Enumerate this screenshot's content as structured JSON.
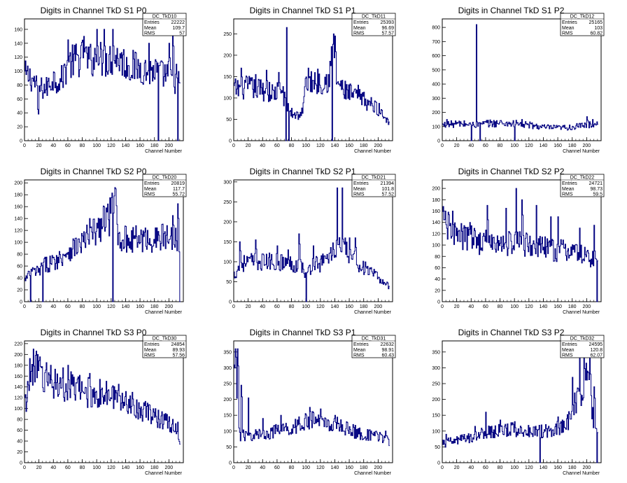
{
  "chart_data": [
    {
      "type": "line",
      "title": "Digits in Channel TkD S1 P0",
      "xlabel": "Channel Number",
      "ylabel": "",
      "xlim": [
        0,
        220
      ],
      "ylim": [
        0,
        175
      ],
      "xticks": [
        0,
        20,
        40,
        60,
        80,
        100,
        120,
        140,
        160,
        180,
        200
      ],
      "yticks": [
        0,
        20,
        40,
        60,
        80,
        100,
        120,
        140,
        160
      ],
      "color": "#000080",
      "stats": {
        "name": "DC_TkD10",
        "entries": "22222",
        "mean": "109.7",
        "rms": "57"
      },
      "anchors": [
        [
          0,
          95
        ],
        [
          10,
          90
        ],
        [
          20,
          75
        ],
        [
          30,
          75
        ],
        [
          40,
          90
        ],
        [
          50,
          85
        ],
        [
          60,
          110
        ],
        [
          70,
          115
        ],
        [
          80,
          120
        ],
        [
          90,
          115
        ],
        [
          100,
          120
        ],
        [
          110,
          115
        ],
        [
          120,
          118
        ],
        [
          130,
          120
        ],
        [
          140,
          110
        ],
        [
          150,
          105
        ],
        [
          160,
          105
        ],
        [
          170,
          100
        ],
        [
          180,
          100
        ],
        [
          190,
          95
        ],
        [
          200,
          95
        ],
        [
          210,
          85
        ],
        [
          215,
          85
        ]
      ],
      "spikes": [
        [
          18,
          45
        ],
        [
          60,
          145
        ],
        [
          82,
          150
        ],
        [
          100,
          160
        ],
        [
          110,
          160
        ],
        [
          122,
          160
        ],
        [
          150,
          130
        ],
        [
          172,
          140
        ],
        [
          200,
          140
        ],
        [
          205,
          160
        ],
        [
          210,
          110
        ]
      ],
      "dips": [
        [
          185,
          0
        ],
        [
          212,
          0
        ]
      ]
    },
    {
      "type": "line",
      "title": "Digits in Channel TkD S1 P1",
      "xlabel": "Channel Number",
      "ylabel": "",
      "xlim": [
        0,
        220
      ],
      "ylim": [
        0,
        285
      ],
      "xticks": [
        0,
        20,
        40,
        60,
        80,
        100,
        120,
        140,
        160,
        180,
        200
      ],
      "yticks": [
        0,
        50,
        100,
        150,
        200,
        250
      ],
      "color": "#000080",
      "stats": {
        "name": "DC_TkD11",
        "entries": "25393",
        "mean": "96.69",
        "rms": "57.57"
      },
      "anchors": [
        [
          0,
          120
        ],
        [
          20,
          125
        ],
        [
          40,
          120
        ],
        [
          55,
          110
        ],
        [
          68,
          120
        ],
        [
          72,
          80
        ],
        [
          80,
          65
        ],
        [
          90,
          60
        ],
        [
          96,
          70
        ],
        [
          100,
          140
        ],
        [
          120,
          140
        ],
        [
          132,
          145
        ],
        [
          138,
          220
        ],
        [
          142,
          145
        ],
        [
          150,
          120
        ],
        [
          160,
          110
        ],
        [
          180,
          95
        ],
        [
          200,
          75
        ],
        [
          215,
          45
        ]
      ],
      "spikes": [
        [
          10,
          170
        ],
        [
          30,
          155
        ],
        [
          45,
          165
        ],
        [
          62,
          160
        ],
        [
          73,
          265
        ],
        [
          138,
          250
        ],
        [
          140,
          245
        ],
        [
          172,
          130
        ]
      ],
      "dips": [
        [
          72,
          0
        ],
        [
          76,
          0
        ],
        [
          136,
          0
        ]
      ]
    },
    {
      "type": "line",
      "title": "Digits in Channel TkD S1 P2",
      "xlabel": "Channel Number",
      "ylabel": "",
      "xlim": [
        0,
        220
      ],
      "ylim": [
        0,
        860
      ],
      "xticks": [
        0,
        20,
        40,
        60,
        80,
        100,
        120,
        140,
        160,
        180,
        200
      ],
      "yticks": [
        0,
        100,
        200,
        300,
        400,
        500,
        600,
        700,
        800
      ],
      "color": "#000080",
      "stats": {
        "name": "DC_TkD12",
        "entries": "25165",
        "mean": "103",
        "rms": "60.82"
      },
      "anchors": [
        [
          0,
          110
        ],
        [
          20,
          120
        ],
        [
          40,
          115
        ],
        [
          44,
          120
        ],
        [
          48,
          110
        ],
        [
          60,
          120
        ],
        [
          80,
          125
        ],
        [
          100,
          120
        ],
        [
          120,
          110
        ],
        [
          140,
          95
        ],
        [
          160,
          90
        ],
        [
          180,
          95
        ],
        [
          200,
          110
        ],
        [
          212,
          120
        ]
      ],
      "spikes": [
        [
          47,
          820
        ],
        [
          6,
          150
        ],
        [
          100,
          160
        ],
        [
          110,
          150
        ],
        [
          200,
          170
        ],
        [
          208,
          150
        ]
      ],
      "dips": [
        [
          40,
          0
        ],
        [
          52,
          0
        ],
        [
          100,
          0
        ]
      ]
    },
    {
      "type": "line",
      "title": "Digits in Channel TkD S2 P0",
      "xlabel": "Channel Number",
      "ylabel": "",
      "xlim": [
        0,
        220
      ],
      "ylim": [
        0,
        205
      ],
      "xticks": [
        0,
        20,
        40,
        60,
        80,
        100,
        120,
        140,
        160,
        180,
        200
      ],
      "yticks": [
        0,
        20,
        40,
        60,
        80,
        100,
        120,
        140,
        160,
        180,
        200
      ],
      "color": "#000080",
      "stats": {
        "name": "DC_TkD20",
        "entries": "20819",
        "mean": "117.7",
        "rms": "55.72"
      },
      "anchors": [
        [
          0,
          35
        ],
        [
          10,
          50
        ],
        [
          20,
          50
        ],
        [
          25,
          60
        ],
        [
          35,
          65
        ],
        [
          45,
          70
        ],
        [
          55,
          80
        ],
        [
          65,
          90
        ],
        [
          75,
          95
        ],
        [
          85,
          105
        ],
        [
          95,
          115
        ],
        [
          105,
          125
        ],
        [
          115,
          140
        ],
        [
          120,
          145
        ],
        [
          125,
          170
        ],
        [
          130,
          110
        ],
        [
          140,
          105
        ],
        [
          160,
          105
        ],
        [
          180,
          105
        ],
        [
          200,
          110
        ],
        [
          212,
          110
        ],
        [
          216,
          75
        ]
      ],
      "spikes": [
        [
          40,
          75
        ],
        [
          90,
          140
        ],
        [
          110,
          160
        ],
        [
          118,
          175
        ],
        [
          122,
          198
        ],
        [
          126,
          190
        ],
        [
          150,
          125
        ],
        [
          190,
          130
        ],
        [
          205,
          145
        ],
        [
          212,
          165
        ]
      ],
      "dips": [
        [
          8,
          0
        ],
        [
          25,
          0
        ],
        [
          122,
          0
        ],
        [
          216,
          0
        ]
      ]
    },
    {
      "type": "line",
      "title": "Digits in Channel TkD S2 P1",
      "xlabel": "Channel Number",
      "ylabel": "",
      "xlim": [
        0,
        220
      ],
      "ylim": [
        0,
        305
      ],
      "xticks": [
        0,
        20,
        40,
        60,
        80,
        100,
        120,
        140,
        160,
        180,
        200
      ],
      "yticks": [
        0,
        50,
        100,
        150,
        200,
        250,
        300
      ],
      "color": "#000080",
      "stats": {
        "name": "DC_TkD21",
        "entries": "21394",
        "mean": "101.8",
        "rms": "57.52"
      },
      "anchors": [
        [
          0,
          65
        ],
        [
          5,
          80
        ],
        [
          10,
          95
        ],
        [
          20,
          100
        ],
        [
          40,
          100
        ],
        [
          60,
          100
        ],
        [
          80,
          95
        ],
        [
          95,
          90
        ],
        [
          100,
          60
        ],
        [
          110,
          100
        ],
        [
          120,
          95
        ],
        [
          135,
          120
        ],
        [
          145,
          140
        ],
        [
          155,
          130
        ],
        [
          165,
          110
        ],
        [
          180,
          85
        ],
        [
          200,
          60
        ],
        [
          215,
          40
        ]
      ],
      "spikes": [
        [
          8,
          150
        ],
        [
          30,
          155
        ],
        [
          60,
          140
        ],
        [
          75,
          130
        ],
        [
          90,
          170
        ],
        [
          110,
          140
        ],
        [
          143,
          285
        ],
        [
          150,
          285
        ],
        [
          160,
          160
        ],
        [
          168,
          160
        ]
      ],
      "dips": [
        [
          100,
          0
        ]
      ]
    },
    {
      "type": "line",
      "title": "Digits in Channel TkD S2 P2",
      "xlabel": "Channel Number",
      "ylabel": "",
      "xlim": [
        0,
        220
      ],
      "ylim": [
        0,
        215
      ],
      "xticks": [
        0,
        20,
        40,
        60,
        80,
        100,
        120,
        140,
        160,
        180,
        200
      ],
      "yticks": [
        0,
        20,
        40,
        60,
        80,
        100,
        120,
        140,
        160,
        180,
        200
      ],
      "color": "#000080",
      "stats": {
        "name": "DC_TkD22",
        "entries": "24721",
        "mean": "98.73",
        "rms": "59.5"
      },
      "anchors": [
        [
          0,
          140
        ],
        [
          10,
          130
        ],
        [
          20,
          115
        ],
        [
          40,
          110
        ],
        [
          60,
          105
        ],
        [
          80,
          100
        ],
        [
          100,
          105
        ],
        [
          120,
          100
        ],
        [
          140,
          95
        ],
        [
          160,
          90
        ],
        [
          180,
          90
        ],
        [
          200,
          80
        ],
        [
          212,
          75
        ]
      ],
      "spikes": [
        [
          4,
          160
        ],
        [
          14,
          160
        ],
        [
          38,
          140
        ],
        [
          62,
          170
        ],
        [
          88,
          165
        ],
        [
          102,
          200
        ],
        [
          110,
          180
        ],
        [
          130,
          170
        ],
        [
          150,
          150
        ],
        [
          160,
          150
        ],
        [
          190,
          130
        ],
        [
          210,
          135
        ]
      ],
      "dips": [
        [
          214,
          0
        ]
      ]
    },
    {
      "type": "line",
      "title": "Digits in Channel TkD S3 P0",
      "xlabel": "Channel Number",
      "ylabel": "",
      "xlim": [
        0,
        220
      ],
      "ylim": [
        0,
        225
      ],
      "xticks": [
        0,
        20,
        40,
        60,
        80,
        100,
        120,
        140,
        160,
        180,
        200
      ],
      "yticks": [
        0,
        20,
        40,
        60,
        80,
        100,
        120,
        140,
        160,
        180,
        200,
        220
      ],
      "color": "#000080",
      "stats": {
        "name": "DC_TkD30",
        "entries": "24854",
        "mean": "89.93",
        "rms": "57.56"
      },
      "anchors": [
        [
          0,
          100
        ],
        [
          5,
          140
        ],
        [
          10,
          175
        ],
        [
          15,
          170
        ],
        [
          30,
          155
        ],
        [
          50,
          145
        ],
        [
          70,
          135
        ],
        [
          90,
          130
        ],
        [
          110,
          125
        ],
        [
          130,
          120
        ],
        [
          150,
          110
        ],
        [
          170,
          90
        ],
        [
          190,
          80
        ],
        [
          205,
          70
        ],
        [
          212,
          60
        ],
        [
          217,
          25
        ]
      ],
      "spikes": [
        [
          12,
          210
        ],
        [
          18,
          200
        ],
        [
          36,
          180
        ],
        [
          60,
          180
        ],
        [
          90,
          165
        ],
        [
          130,
          145
        ],
        [
          170,
          110
        ],
        [
          200,
          85
        ],
        [
          212,
          75
        ]
      ],
      "dips": []
    },
    {
      "type": "line",
      "title": "Digits in Channel TkD S3 P1",
      "xlabel": "Channel Number",
      "ylabel": "",
      "xlim": [
        0,
        220
      ],
      "ylim": [
        0,
        385
      ],
      "xticks": [
        0,
        20,
        40,
        60,
        80,
        100,
        120,
        140,
        160,
        180,
        200
      ],
      "yticks": [
        0,
        50,
        100,
        150,
        200,
        250,
        300,
        350
      ],
      "color": "#000080",
      "stats": {
        "name": "DC_TkD31",
        "entries": "22632",
        "mean": "98.91",
        "rms": "60.43"
      },
      "anchors": [
        [
          0,
          250
        ],
        [
          3,
          330
        ],
        [
          6,
          100
        ],
        [
          10,
          85
        ],
        [
          20,
          85
        ],
        [
          40,
          90
        ],
        [
          60,
          100
        ],
        [
          80,
          110
        ],
        [
          100,
          130
        ],
        [
          110,
          135
        ],
        [
          130,
          125
        ],
        [
          150,
          115
        ],
        [
          170,
          95
        ],
        [
          190,
          85
        ],
        [
          210,
          80
        ],
        [
          217,
          50
        ]
      ],
      "spikes": [
        [
          2,
          360
        ],
        [
          5,
          360
        ],
        [
          10,
          245
        ],
        [
          20,
          205
        ],
        [
          40,
          140
        ],
        [
          65,
          150
        ],
        [
          90,
          145
        ],
        [
          105,
          175
        ],
        [
          120,
          170
        ],
        [
          140,
          150
        ],
        [
          210,
          100
        ]
      ],
      "dips": []
    },
    {
      "type": "line",
      "title": "Digits in Channel TkD S3 P2",
      "xlabel": "Channel Number",
      "ylabel": "",
      "xlim": [
        0,
        220
      ],
      "ylim": [
        0,
        385
      ],
      "xticks": [
        0,
        20,
        40,
        60,
        80,
        100,
        120,
        140,
        160,
        180,
        200
      ],
      "yticks": [
        0,
        50,
        100,
        150,
        200,
        250,
        300,
        350
      ],
      "color": "#000080",
      "stats": {
        "name": "DC_TkD32",
        "entries": "24595",
        "mean": "120.8",
        "rms": "62.07"
      },
      "anchors": [
        [
          0,
          60
        ],
        [
          10,
          65
        ],
        [
          20,
          70
        ],
        [
          40,
          80
        ],
        [
          60,
          95
        ],
        [
          80,
          100
        ],
        [
          100,
          105
        ],
        [
          120,
          100
        ],
        [
          140,
          100
        ],
        [
          160,
          110
        ],
        [
          175,
          130
        ],
        [
          185,
          200
        ],
        [
          195,
          240
        ],
        [
          202,
          300
        ],
        [
          208,
          150
        ],
        [
          212,
          100
        ]
      ],
      "spikes": [
        [
          5,
          90
        ],
        [
          45,
          115
        ],
        [
          60,
          160
        ],
        [
          80,
          135
        ],
        [
          100,
          130
        ],
        [
          130,
          105
        ],
        [
          160,
          145
        ],
        [
          180,
          270
        ],
        [
          190,
          330
        ],
        [
          196,
          350
        ],
        [
          204,
          330
        ],
        [
          210,
          240
        ]
      ],
      "dips": [
        [
          135,
          0
        ],
        [
          214,
          0
        ]
      ]
    }
  ]
}
